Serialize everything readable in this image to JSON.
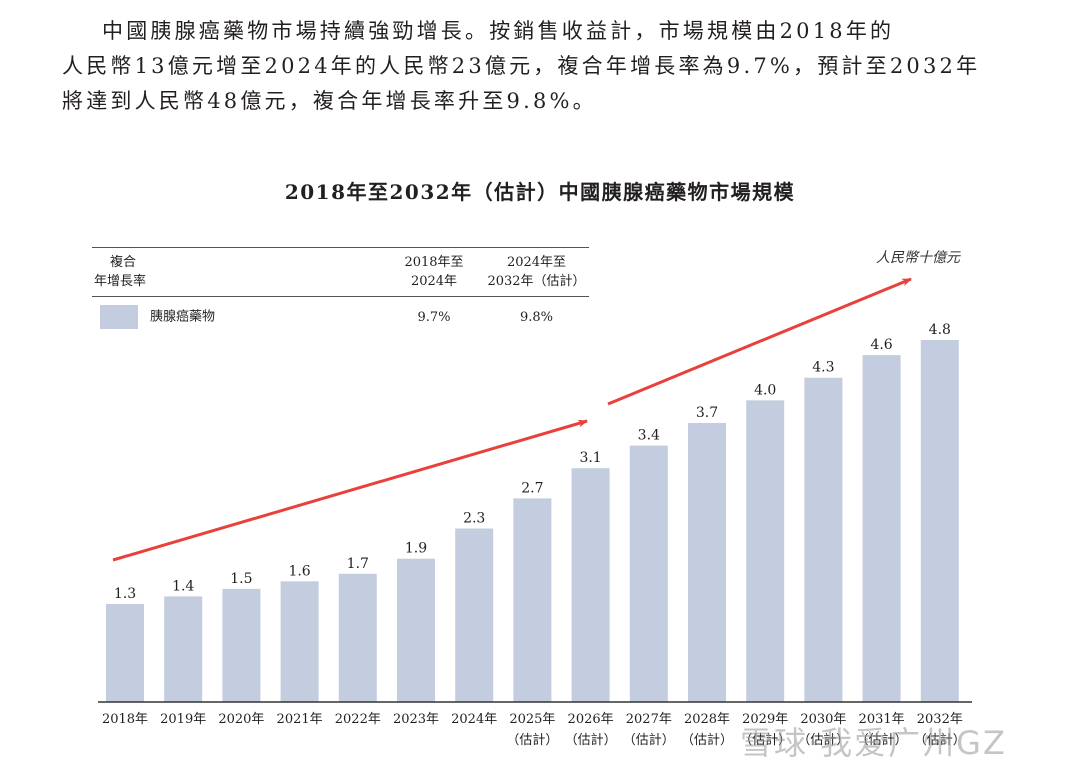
{
  "paragraph": {
    "lines": [
      "中國胰腺癌藥物市場持續強勁增長。按銷售收益計，市場規模由2018年的",
      "人民幣13億元增至2024年的人民幣23億元，複合年增長率為9.7%，預計至2032年",
      "將達到人民幣48億元，複合年增長率升至9.8%。"
    ]
  },
  "legend_table": {
    "header_col1_line1": "複合",
    "header_col1_line2": "年增長率",
    "header_col2_line1": "2018年至",
    "header_col2_line2": "2024年",
    "header_col3_line1": "2024年至",
    "header_col3_line2": "2032年（估計）",
    "row_label": "胰腺癌藥物",
    "row_cagr_2018_2024": "9.7%",
    "row_cagr_2024_2032": "9.8%"
  },
  "watermark": "雪球·我爱广州GZ",
  "colors": {
    "bar": "#c3cddf",
    "arrow": "#e8413c",
    "axis": "#333333"
  },
  "chart_data": {
    "type": "bar",
    "title": "2018年至2032年（估計）中國胰腺癌藥物市場規模",
    "unit_label": "人民幣十億元",
    "xlabel": "",
    "ylabel": "",
    "ylim": [
      0,
      4.8
    ],
    "grid": false,
    "categories": [
      "2018年",
      "2019年",
      "2020年",
      "2021年",
      "2022年",
      "2023年",
      "2024年",
      "2025年",
      "2026年",
      "2027年",
      "2028年",
      "2029年",
      "2030年",
      "2031年",
      "2032年"
    ],
    "category_sublabels": [
      "",
      "",
      "",
      "",
      "",
      "",
      "",
      "（估計）",
      "（估計）",
      "（估計）",
      "（估計）",
      "（估計）",
      "（估計）",
      "（估計）",
      "（估計）"
    ],
    "series": [
      {
        "name": "胰腺癌藥物",
        "values": [
          1.3,
          1.4,
          1.5,
          1.6,
          1.7,
          1.9,
          2.3,
          2.7,
          3.1,
          3.4,
          3.7,
          4.0,
          4.3,
          4.6,
          4.8
        ],
        "data_labels": [
          "1.3",
          "1.4",
          "1.5",
          "1.6",
          "1.7",
          "1.9",
          "2.3",
          "2.7",
          "3.1",
          "3.4",
          "3.7",
          "4.0",
          "4.3",
          "4.6",
          "4.8"
        ]
      }
    ],
    "annotations": [
      "growth-trend-arrow-1",
      "growth-trend-arrow-2"
    ]
  }
}
